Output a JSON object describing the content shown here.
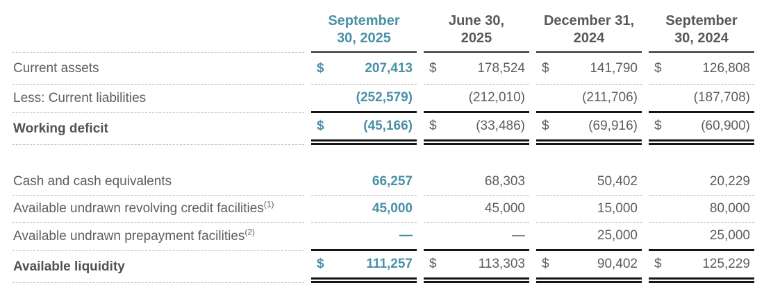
{
  "accent_color": "#4a90a6",
  "table": {
    "columns": [
      {
        "line1": "September",
        "line2": "30, 2025"
      },
      {
        "line1": "June 30,",
        "line2": "2025"
      },
      {
        "line1": "December 31,",
        "line2": "2024"
      },
      {
        "line1": "September",
        "line2": "30, 2024"
      }
    ],
    "rows": [
      {
        "label": "Current assets",
        "cells": [
          {
            "dollar": "$",
            "value": "207,413"
          },
          {
            "dollar": "$",
            "value": "178,524"
          },
          {
            "dollar": "$",
            "value": "141,790"
          },
          {
            "dollar": "$",
            "value": "126,808"
          }
        ]
      },
      {
        "label": "Less: Current liabilities",
        "cells": [
          {
            "dollar": "",
            "value": "(252,579)"
          },
          {
            "dollar": "",
            "value": "(212,010)"
          },
          {
            "dollar": "",
            "value": "(211,706)"
          },
          {
            "dollar": "",
            "value": "(187,708)"
          }
        ]
      },
      {
        "label": "Working deficit",
        "cells": [
          {
            "dollar": "$",
            "value": "(45,166)"
          },
          {
            "dollar": "$",
            "value": "(33,486)"
          },
          {
            "dollar": "$",
            "value": "(69,916)"
          },
          {
            "dollar": "$",
            "value": "(60,900)"
          }
        ]
      },
      {
        "label": "Cash and cash equivalents",
        "cells": [
          {
            "dollar": "",
            "value": "66,257"
          },
          {
            "dollar": "",
            "value": "68,303"
          },
          {
            "dollar": "",
            "value": "50,402"
          },
          {
            "dollar": "",
            "value": "20,229"
          }
        ]
      },
      {
        "label": "Available undrawn revolving credit facilities",
        "sup": "(1)",
        "cells": [
          {
            "dollar": "",
            "value": "45,000"
          },
          {
            "dollar": "",
            "value": "45,000"
          },
          {
            "dollar": "",
            "value": "15,000"
          },
          {
            "dollar": "",
            "value": "80,000"
          }
        ]
      },
      {
        "label": "Available undrawn prepayment facilities",
        "sup": "(2)",
        "cells": [
          {
            "dollar": "",
            "value": "—"
          },
          {
            "dollar": "",
            "value": "—"
          },
          {
            "dollar": "",
            "value": "25,000"
          },
          {
            "dollar": "",
            "value": "25,000"
          }
        ]
      },
      {
        "label": "Available liquidity",
        "cells": [
          {
            "dollar": "$",
            "value": "111,257"
          },
          {
            "dollar": "$",
            "value": "113,303"
          },
          {
            "dollar": "$",
            "value": "90,402"
          },
          {
            "dollar": "$",
            "value": "125,229"
          }
        ]
      }
    ]
  }
}
